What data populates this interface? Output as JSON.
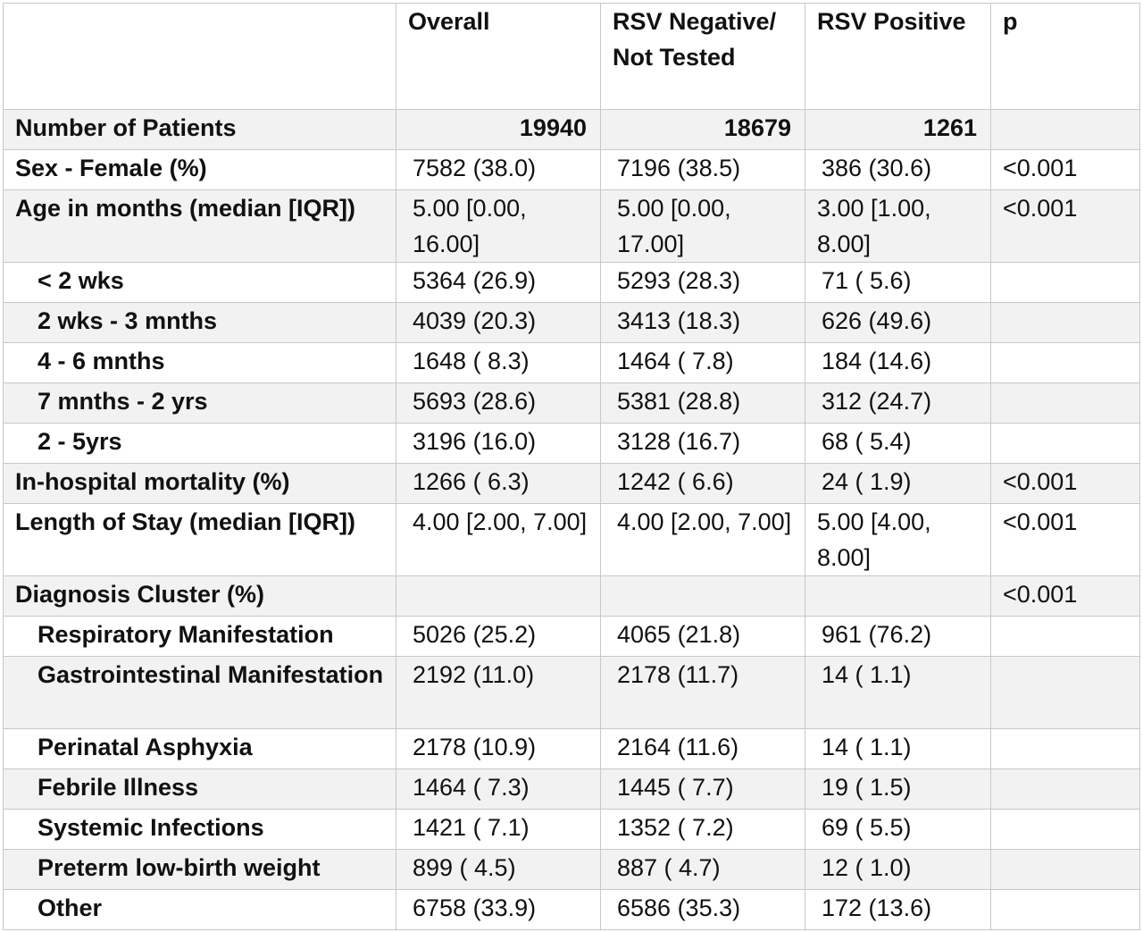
{
  "headers": [
    "",
    "Overall",
    "RSV Negative/ Not Tested",
    "RSV Positive",
    "p"
  ],
  "rows": [
    {
      "label": "Number of Patients",
      "overall": "19940",
      "neg": "18679",
      "pos": "1261",
      "p": ""
    },
    {
      "label": "Sex - Female (%)",
      "overall": "7582 (38.0)",
      "neg": "7196 (38.5)",
      "pos": "386 (30.6)",
      "p": "<0.001"
    },
    {
      "label": "Age in months (median [IQR])",
      "overall": "5.00 [0.00, 16.00]",
      "neg": "5.00 [0.00, 17.00]",
      "pos": "3.00 [1.00, 8.00]",
      "p": "<0.001"
    },
    {
      "label": "< 2 wks",
      "overall": "5364 (26.9)",
      "neg": "5293 (28.3)",
      "pos": "71 ( 5.6)",
      "p": ""
    },
    {
      "label": "2 wks - 3 mnths",
      "overall": "4039 (20.3)",
      "neg": "3413 (18.3)",
      "pos": "626 (49.6)",
      "p": ""
    },
    {
      "label": "4 - 6 mnths",
      "overall": "1648 ( 8.3)",
      "neg": "1464 ( 7.8)",
      "pos": "184 (14.6)",
      "p": ""
    },
    {
      "label": "7 mnths - 2 yrs",
      "overall": "5693 (28.6)",
      "neg": "5381 (28.8)",
      "pos": "312 (24.7)",
      "p": ""
    },
    {
      "label": "2 - 5yrs",
      "overall": "3196 (16.0)",
      "neg": "3128 (16.7)",
      "pos": "68 ( 5.4)",
      "p": ""
    },
    {
      "label": "In-hospital mortality (%)",
      "overall": "1266 ( 6.3)",
      "neg": "1242 ( 6.6)",
      "pos": "24 ( 1.9)",
      "p": "<0.001"
    },
    {
      "label": "Length of Stay (median [IQR])",
      "overall": "4.00 [2.00, 7.00]",
      "neg": "4.00 [2.00, 7.00]",
      "pos": "5.00 [4.00, 8.00]",
      "p": "<0.001"
    },
    {
      "label": "Diagnosis Cluster (%)",
      "overall": "",
      "neg": "",
      "pos": "",
      "p": "<0.001"
    },
    {
      "label": "Respiratory Manifestation",
      "overall": "5026 (25.2)",
      "neg": "4065 (21.8)",
      "pos": "961 (76.2)",
      "p": ""
    },
    {
      "label": "Gastrointestinal Manifestation",
      "overall": "2192 (11.0)",
      "neg": "2178 (11.7)",
      "pos": "14 ( 1.1)",
      "p": ""
    },
    {
      "label": "Perinatal Asphyxia",
      "overall": "2178 (10.9)",
      "neg": "2164 (11.6)",
      "pos": "14 ( 1.1)",
      "p": ""
    },
    {
      "label": "Febrile Illness",
      "overall": "1464 ( 7.3)",
      "neg": "1445 ( 7.7)",
      "pos": "19 ( 1.5)",
      "p": ""
    },
    {
      "label": "Systemic Infections",
      "overall": "1421 ( 7.1)",
      "neg": "1352 ( 7.2)",
      "pos": "69 ( 5.5)",
      "p": ""
    },
    {
      "label": "Preterm low-birth weight",
      "overall": "899 ( 4.5)",
      "neg": "887 ( 4.7)",
      "pos": "12 ( 1.0)",
      "p": ""
    },
    {
      "label": "Other",
      "overall": "6758 (33.9)",
      "neg": "6586 (35.3)",
      "pos": "172 (13.6)",
      "p": ""
    }
  ]
}
